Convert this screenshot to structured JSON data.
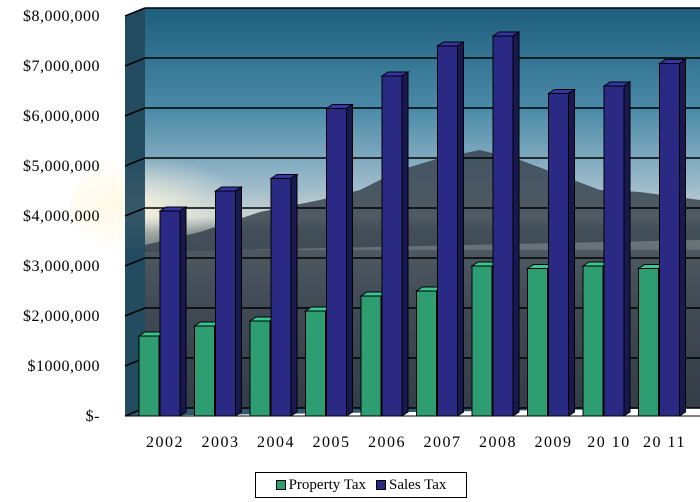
{
  "chart_data": {
    "type": "bar",
    "categories": [
      "2002",
      "2003",
      "2004",
      "2005",
      "2006",
      "2007",
      "2008",
      "2009",
      "2010",
      "2011"
    ],
    "category_labels": [
      "2002",
      "2003",
      "2004",
      "2005",
      "2006",
      "2007",
      "2008",
      "2009",
      "20 10",
      "20 11"
    ],
    "series": [
      {
        "name": "Property Tax",
        "color": "#2e9e72",
        "values": [
          1600000,
          1800000,
          1900000,
          2100000,
          2400000,
          2500000,
          3000000,
          2950000,
          3000000,
          2950000
        ]
      },
      {
        "name": "Sales Tax",
        "color": "#2a2a85",
        "values": [
          4100000,
          4500000,
          4750000,
          6150000,
          6800000,
          7400000,
          7600000,
          6450000,
          6600000,
          7050000
        ]
      }
    ],
    "yticks": [
      0,
      1000000,
      2000000,
      3000000,
      4000000,
      5000000,
      6000000,
      7000000,
      8000000
    ],
    "ytick_labels": [
      "$-",
      "$1000,000",
      "$2,000,000",
      "$3,000,000",
      "$4,000,000",
      "$5,000,000",
      "$6,000,000",
      "$7,000,000",
      "$8,000,000"
    ],
    "ylim": [
      0,
      8000000
    ],
    "grid": true,
    "legend": "bottom",
    "background": "photo of mountains and lake at sunset"
  }
}
